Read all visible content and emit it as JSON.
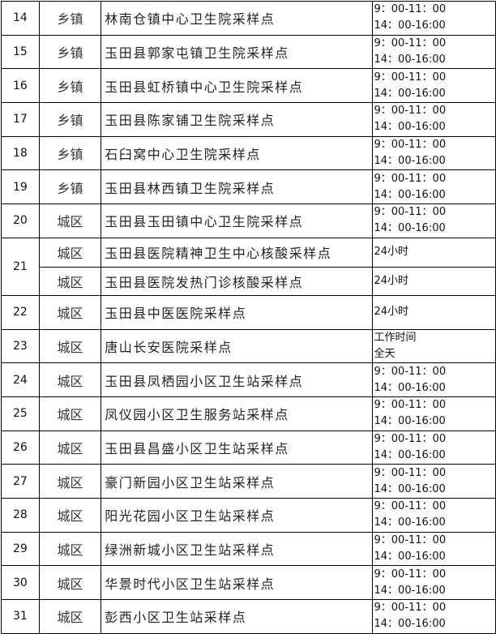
{
  "rows": [
    {
      "no": "14",
      "area": "乡镇",
      "site": "林南仓镇中心卫生院采样点",
      "hours": [
        "9：00-11：00",
        "14：00-16:00"
      ]
    },
    {
      "no": "15",
      "area": "乡镇",
      "site": "玉田县郭家屯镇卫生院采样点",
      "hours": [
        "9：00-11：00",
        "14：00-16:00"
      ]
    },
    {
      "no": "16",
      "area": "乡镇",
      "site": "玉田县虹桥镇中心卫生院采样点",
      "hours": [
        "9：00-11：00",
        "14：00-16:00"
      ]
    },
    {
      "no": "17",
      "area": "乡镇",
      "site": "玉田县陈家铺卫生院采样点",
      "hours": [
        "9：00-11：00",
        "14：00-16:00"
      ]
    },
    {
      "no": "18",
      "area": "乡镇",
      "site": "石臼窝中心卫生院采样点",
      "hours": [
        "9：00-11：00",
        "14：00-16:00"
      ]
    },
    {
      "no": "19",
      "area": "乡镇",
      "site": "玉田县林西镇卫生院采样点",
      "hours": [
        "9：00-11：00",
        "14：00-16:00"
      ]
    },
    {
      "no": "20",
      "area": "城区",
      "site": "玉田县玉田镇中心卫生院采样点",
      "hours": [
        "9：00-11：00",
        "14：00-16:00"
      ]
    },
    {
      "no": "21",
      "area": "城区",
      "site": "玉田县医院精神卫生中心核酸采样点",
      "hours": [
        "24小时"
      ]
    },
    {
      "no": "",
      "area": "城区",
      "site": "玉田县医院发热门诊核酸采样点",
      "hours": [
        "24小时"
      ]
    },
    {
      "no": "22",
      "area": "城区",
      "site": "玉田县中医医院采样点",
      "hours": [
        "24小时"
      ]
    },
    {
      "no": "23",
      "area": "城区",
      "site": "唐山长安医院采样点",
      "hours": [
        "工作时间",
        "全天"
      ]
    },
    {
      "no": "24",
      "area": "城区",
      "site": "玉田县凤栖园小区卫生站采样点",
      "hours": [
        "9：00-11：00",
        "14：00-16:00"
      ]
    },
    {
      "no": "25",
      "area": "城区",
      "site": "凤仪园小区卫生服务站采样点",
      "hours": [
        "9：00-11：00",
        "14：00-16:00"
      ]
    },
    {
      "no": "26",
      "area": "城区",
      "site": "玉田县昌盛小区卫生站采样点",
      "hours": [
        "9：00-11：00",
        "14：00-16:00"
      ]
    },
    {
      "no": "27",
      "area": "城区",
      "site": "豪门新园小区卫生站采样点",
      "hours": [
        "9：00-11：00",
        "14：00-16:00"
      ]
    },
    {
      "no": "28",
      "area": "城区",
      "site": "阳光花园小区卫生站采样点",
      "hours": [
        "9：00-11：00",
        "14：00-16:00"
      ]
    },
    {
      "no": "29",
      "area": "城区",
      "site": "绿洲新城小区卫生站采样点",
      "hours": [
        "9：00-11：00",
        "14：00-16:00"
      ]
    },
    {
      "no": "30",
      "area": "城区",
      "site": "华景时代小区卫生站采样点",
      "hours": [
        "9：00-11：00",
        "14：00-16:00"
      ]
    },
    {
      "no": "31",
      "area": "城区",
      "site": "彭西小区卫生站采样点",
      "hours": [
        "9：00-11：00",
        "14：00-16:00"
      ]
    }
  ]
}
